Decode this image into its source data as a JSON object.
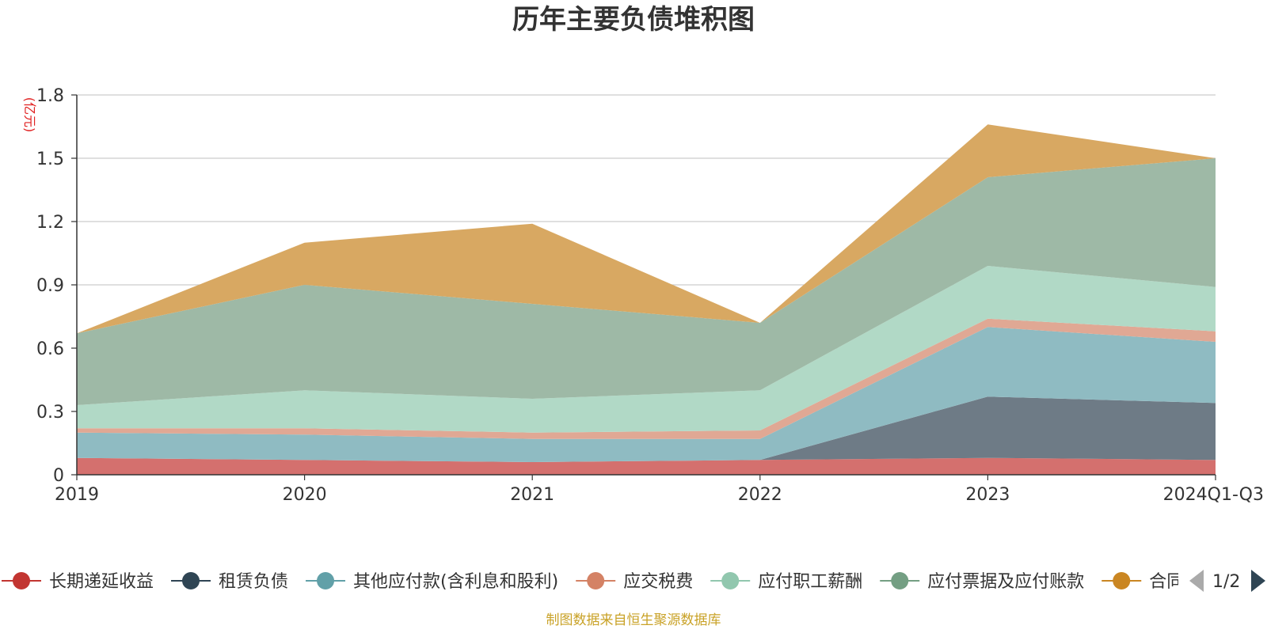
{
  "chart_data": {
    "type": "area",
    "stacked": true,
    "title": "历年主要负债堆积图",
    "unit_label": "(亿元)",
    "categories": [
      "2019",
      "2020",
      "2021",
      "2022",
      "2023",
      "2024Q1-Q3"
    ],
    "ylim": [
      0,
      1.8
    ],
    "y_ticks": [
      "0",
      "0.3",
      "0.6",
      "0.9",
      "1.2",
      "1.5",
      "1.8"
    ],
    "grid": true,
    "legend_position": "bottom",
    "series": [
      {
        "name": "长期递延收益",
        "color": "#c23531",
        "fill": "#d4706e",
        "values": [
          0.08,
          0.07,
          0.06,
          0.07,
          0.08,
          0.07
        ]
      },
      {
        "name": "租赁负债",
        "color": "#2f4554",
        "fill": "#6e7b86",
        "values": [
          0,
          0,
          0,
          0,
          0.29,
          0.27
        ]
      },
      {
        "name": "其他应付款(含利息和股利)",
        "color": "#61a0a8",
        "fill": "#8fbbc2",
        "values": [
          0.12,
          0.12,
          0.11,
          0.1,
          0.33,
          0.29
        ]
      },
      {
        "name": "应交税费",
        "color": "#d48265",
        "fill": "#e0a894",
        "values": [
          0.02,
          0.03,
          0.03,
          0.04,
          0.04,
          0.05
        ]
      },
      {
        "name": "应付职工薪酬",
        "color": "#91c7ae",
        "fill": "#b1d9c6",
        "values": [
          0.11,
          0.18,
          0.16,
          0.19,
          0.25,
          0.21
        ]
      },
      {
        "name": "应付票据及应付账款",
        "color": "#749f83",
        "fill": "#9eb9a6",
        "values": [
          0.34,
          0.5,
          0.45,
          0.32,
          0.42,
          0.61
        ]
      },
      {
        "name": "合同负债",
        "color": "#ca8622",
        "fill": "#d8a862",
        "values": [
          0.0,
          0.2,
          0.38,
          0.0,
          0.25,
          0.0
        ]
      }
    ],
    "legend_page": "1/2",
    "source_note": "制图数据来自恒生聚源数据库"
  }
}
